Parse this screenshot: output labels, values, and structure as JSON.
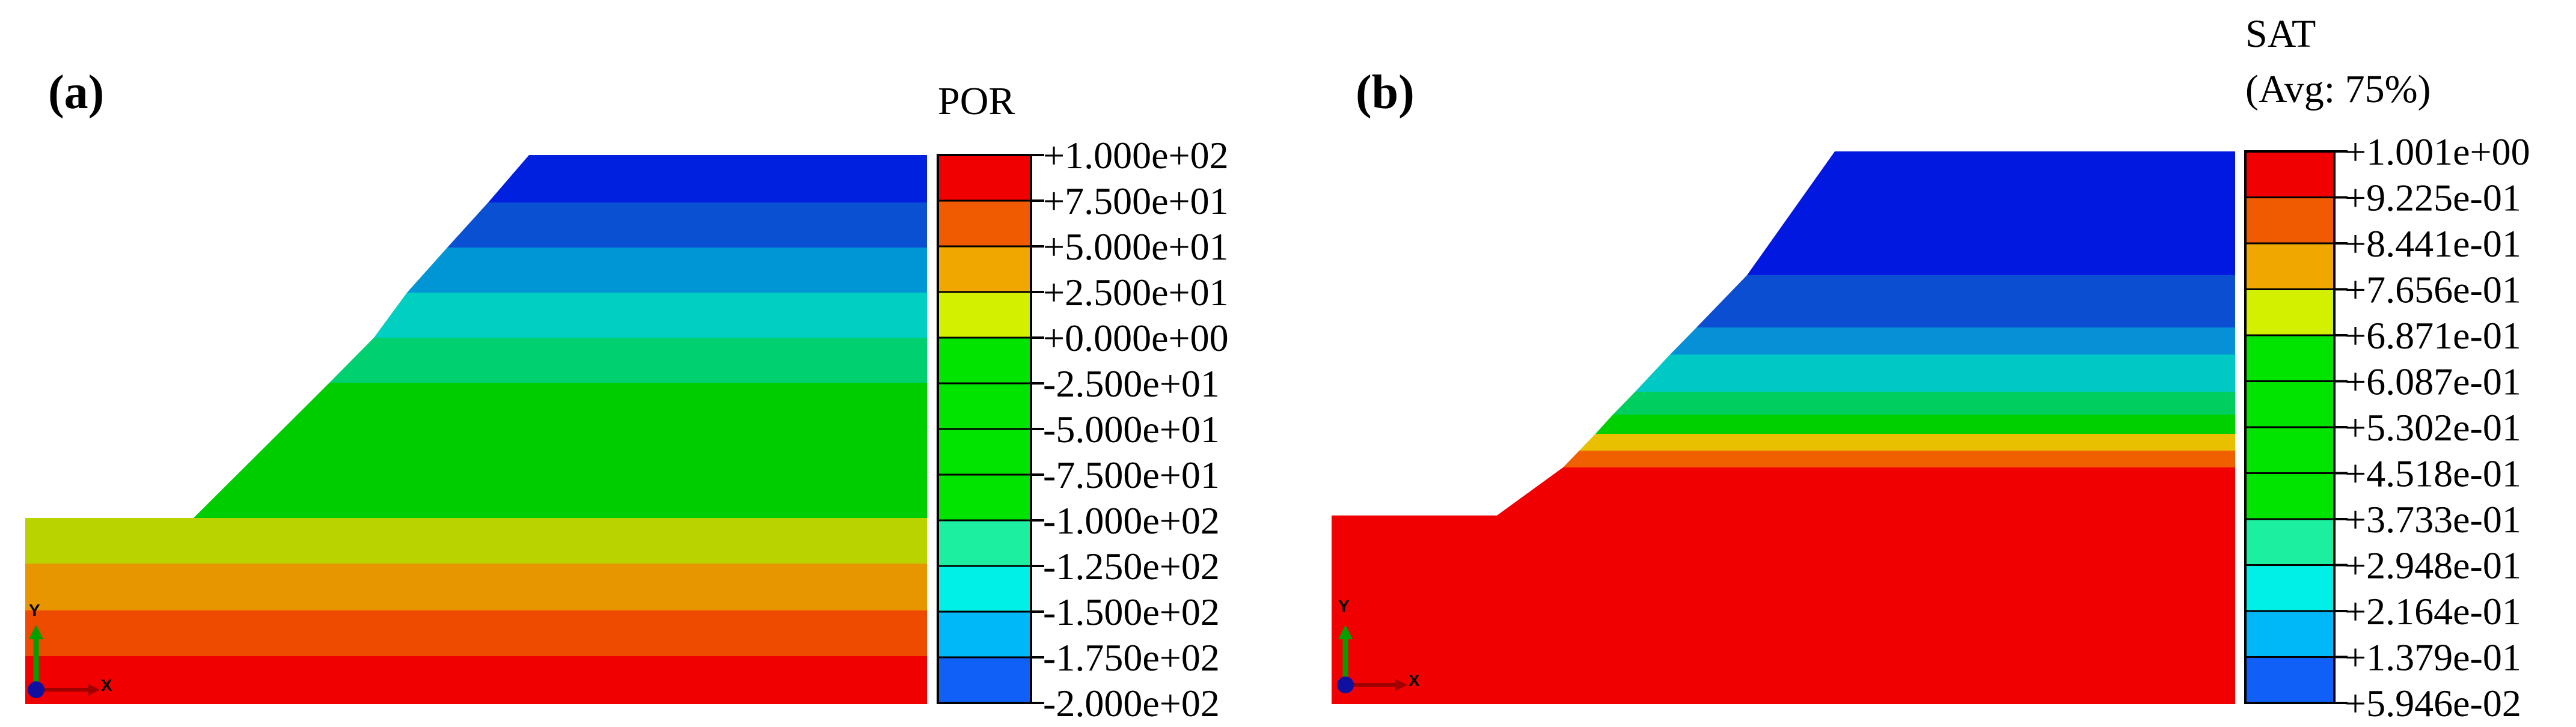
{
  "panels": [
    {
      "id": "a",
      "label": "(a)",
      "legend_title": [
        "POR"
      ],
      "legend_values": [
        "+1.000e+02",
        "+7.500e+01",
        "+5.000e+01",
        "+2.500e+01",
        "+0.000e+00",
        "-2.500e+01",
        "-5.000e+01",
        "-7.500e+01",
        "-1.000e+02",
        "-1.250e+02",
        "-1.500e+02",
        "-1.750e+02",
        "-2.000e+02"
      ],
      "legend_colors": [
        "#f00000",
        "#f05a00",
        "#f0a800",
        "#d2f000",
        "#00e400",
        "#00e400",
        "#00e400",
        "#00e400",
        "#1cf0a0",
        "#00f0e8",
        "#00b8f8",
        "#1060f8",
        "#0000f8"
      ],
      "triad": {
        "y_label": "Y",
        "x_label": "X"
      }
    },
    {
      "id": "b",
      "label": "(b)",
      "legend_title": [
        "SAT",
        "(Avg: 75%)"
      ],
      "legend_values": [
        "+1.001e+00",
        "+9.225e-01",
        "+8.441e-01",
        "+7.656e-01",
        "+6.871e-01",
        "+6.087e-01",
        "+5.302e-01",
        "+4.518e-01",
        "+3.733e-01",
        "+2.948e-01",
        "+2.164e-01",
        "+1.379e-01",
        "+5.946e-02"
      ],
      "legend_colors": [
        "#f00000",
        "#f05a00",
        "#f0a800",
        "#d2f000",
        "#00e400",
        "#00e400",
        "#00e400",
        "#00e400",
        "#1cf0a0",
        "#00f0e8",
        "#00b8f8",
        "#1060f8",
        "#0000f8"
      ],
      "triad": {
        "y_label": "Y",
        "x_label": "X"
      }
    }
  ]
}
